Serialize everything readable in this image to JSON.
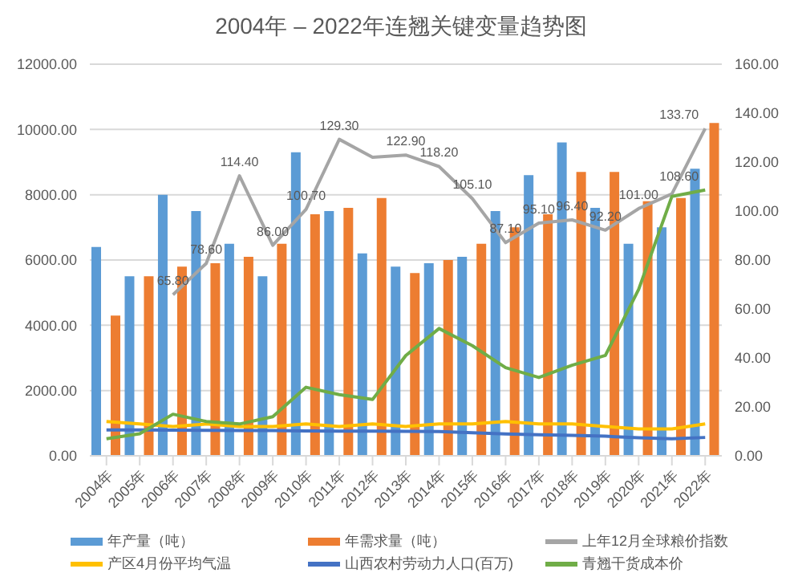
{
  "chart_data": {
    "type": "bar",
    "title": "2004年 – 2022年连翘关键变量趋势图",
    "categories": [
      "2004年",
      "2005年",
      "2006年",
      "2007年",
      "2008年",
      "2009年",
      "2010年",
      "2011年",
      "2012年",
      "2013年",
      "2014年",
      "2015年",
      "2016年",
      "2017年",
      "2018年",
      "2019年",
      "2020年",
      "2021年",
      "2022年"
    ],
    "series": [
      {
        "name": "年产量（吨）",
        "color": "#5b9bd5",
        "values": [
          6400,
          5500,
          8000,
          7500,
          6500,
          5500,
          9300,
          7500,
          6200,
          5800,
          5900,
          6100,
          7500,
          8600,
          9600,
          7600,
          6500,
          7000,
          8800
        ]
      },
      {
        "name": "年需求量（吨）",
        "color": "#ed7d31",
        "values": [
          4300,
          5500,
          5800,
          5900,
          6100,
          6500,
          7400,
          7600,
          7900,
          5600,
          6000,
          6500,
          7000,
          7400,
          8700,
          8700,
          7800,
          7900,
          10200
        ]
      },
      {
        "name": "上年12月全球粮价指数",
        "type": "line",
        "axis": "y2",
        "color": "#a5a5a5",
        "values": [
          null,
          null,
          65.8,
          78.6,
          114.4,
          86,
          100.7,
          129.3,
          122,
          122.9,
          118.2,
          105.1,
          87.1,
          95.1,
          96.4,
          92.2,
          101,
          107,
          133.7
        ],
        "value_labels": [
          null,
          null,
          "65.80",
          "78.60",
          "114.40",
          "86.00",
          "100.70",
          "129.30",
          null,
          "122.90",
          "118.20",
          "105.10",
          "87.10",
          "95.10",
          "96.40",
          "92.20",
          "101.00",
          null,
          "133.70"
        ]
      },
      {
        "name": "产区4月份平均气温",
        "type": "line",
        "axis": "y2",
        "color": "#ffc000",
        "values": [
          14,
          13,
          12,
          13,
          12,
          12,
          13,
          12,
          13,
          12,
          13,
          13,
          14,
          13,
          13,
          12,
          11,
          11,
          13
        ]
      },
      {
        "name": "山西农村劳动力人口(百万)",
        "type": "line",
        "axis": "y2",
        "color": "#4472c4",
        "values": [
          10.6,
          10.6,
          10.5,
          10.4,
          10.3,
          10.3,
          10.2,
          10.1,
          10.1,
          10,
          9.9,
          9.4,
          8.9,
          8.6,
          8.4,
          8,
          7.4,
          7,
          7.5
        ]
      },
      {
        "name": "青翘干货成本价",
        "type": "line",
        "axis": "y2",
        "color": "#70ad47",
        "values": [
          7,
          9,
          17,
          14,
          13,
          16,
          28,
          25,
          23,
          41,
          52,
          45,
          36,
          32,
          37,
          41,
          68,
          106,
          108.6
        ],
        "value_labels": [
          null,
          null,
          null,
          null,
          null,
          null,
          null,
          null,
          null,
          null,
          null,
          null,
          null,
          null,
          null,
          null,
          null,
          null,
          "108.60"
        ]
      }
    ],
    "ylim": [
      0,
      12000
    ],
    "yticks": [
      {
        "value": 0,
        "label": "0.00"
      },
      {
        "value": 2000,
        "label": "2000.00"
      },
      {
        "value": 4000,
        "label": "4000.00"
      },
      {
        "value": 6000,
        "label": "6000.00"
      },
      {
        "value": 8000,
        "label": "8000.00"
      },
      {
        "value": 10000,
        "label": "10000.00"
      },
      {
        "value": 12000,
        "label": "12000.00"
      }
    ],
    "y2lim": [
      0,
      160
    ],
    "y2ticks": [
      {
        "value": 0,
        "label": "0.00"
      },
      {
        "value": 20,
        "label": "20.00"
      },
      {
        "value": 40,
        "label": "40.00"
      },
      {
        "value": 60,
        "label": "60.00"
      },
      {
        "value": 80,
        "label": "80.00"
      },
      {
        "value": 100,
        "label": "100.00"
      },
      {
        "value": 120,
        "label": "120.00"
      },
      {
        "value": 140,
        "label": "140.00"
      },
      {
        "value": 160,
        "label": "160.00"
      }
    ],
    "grid": "y",
    "legend": "bottom",
    "marker": "none",
    "line_style": "solid"
  }
}
